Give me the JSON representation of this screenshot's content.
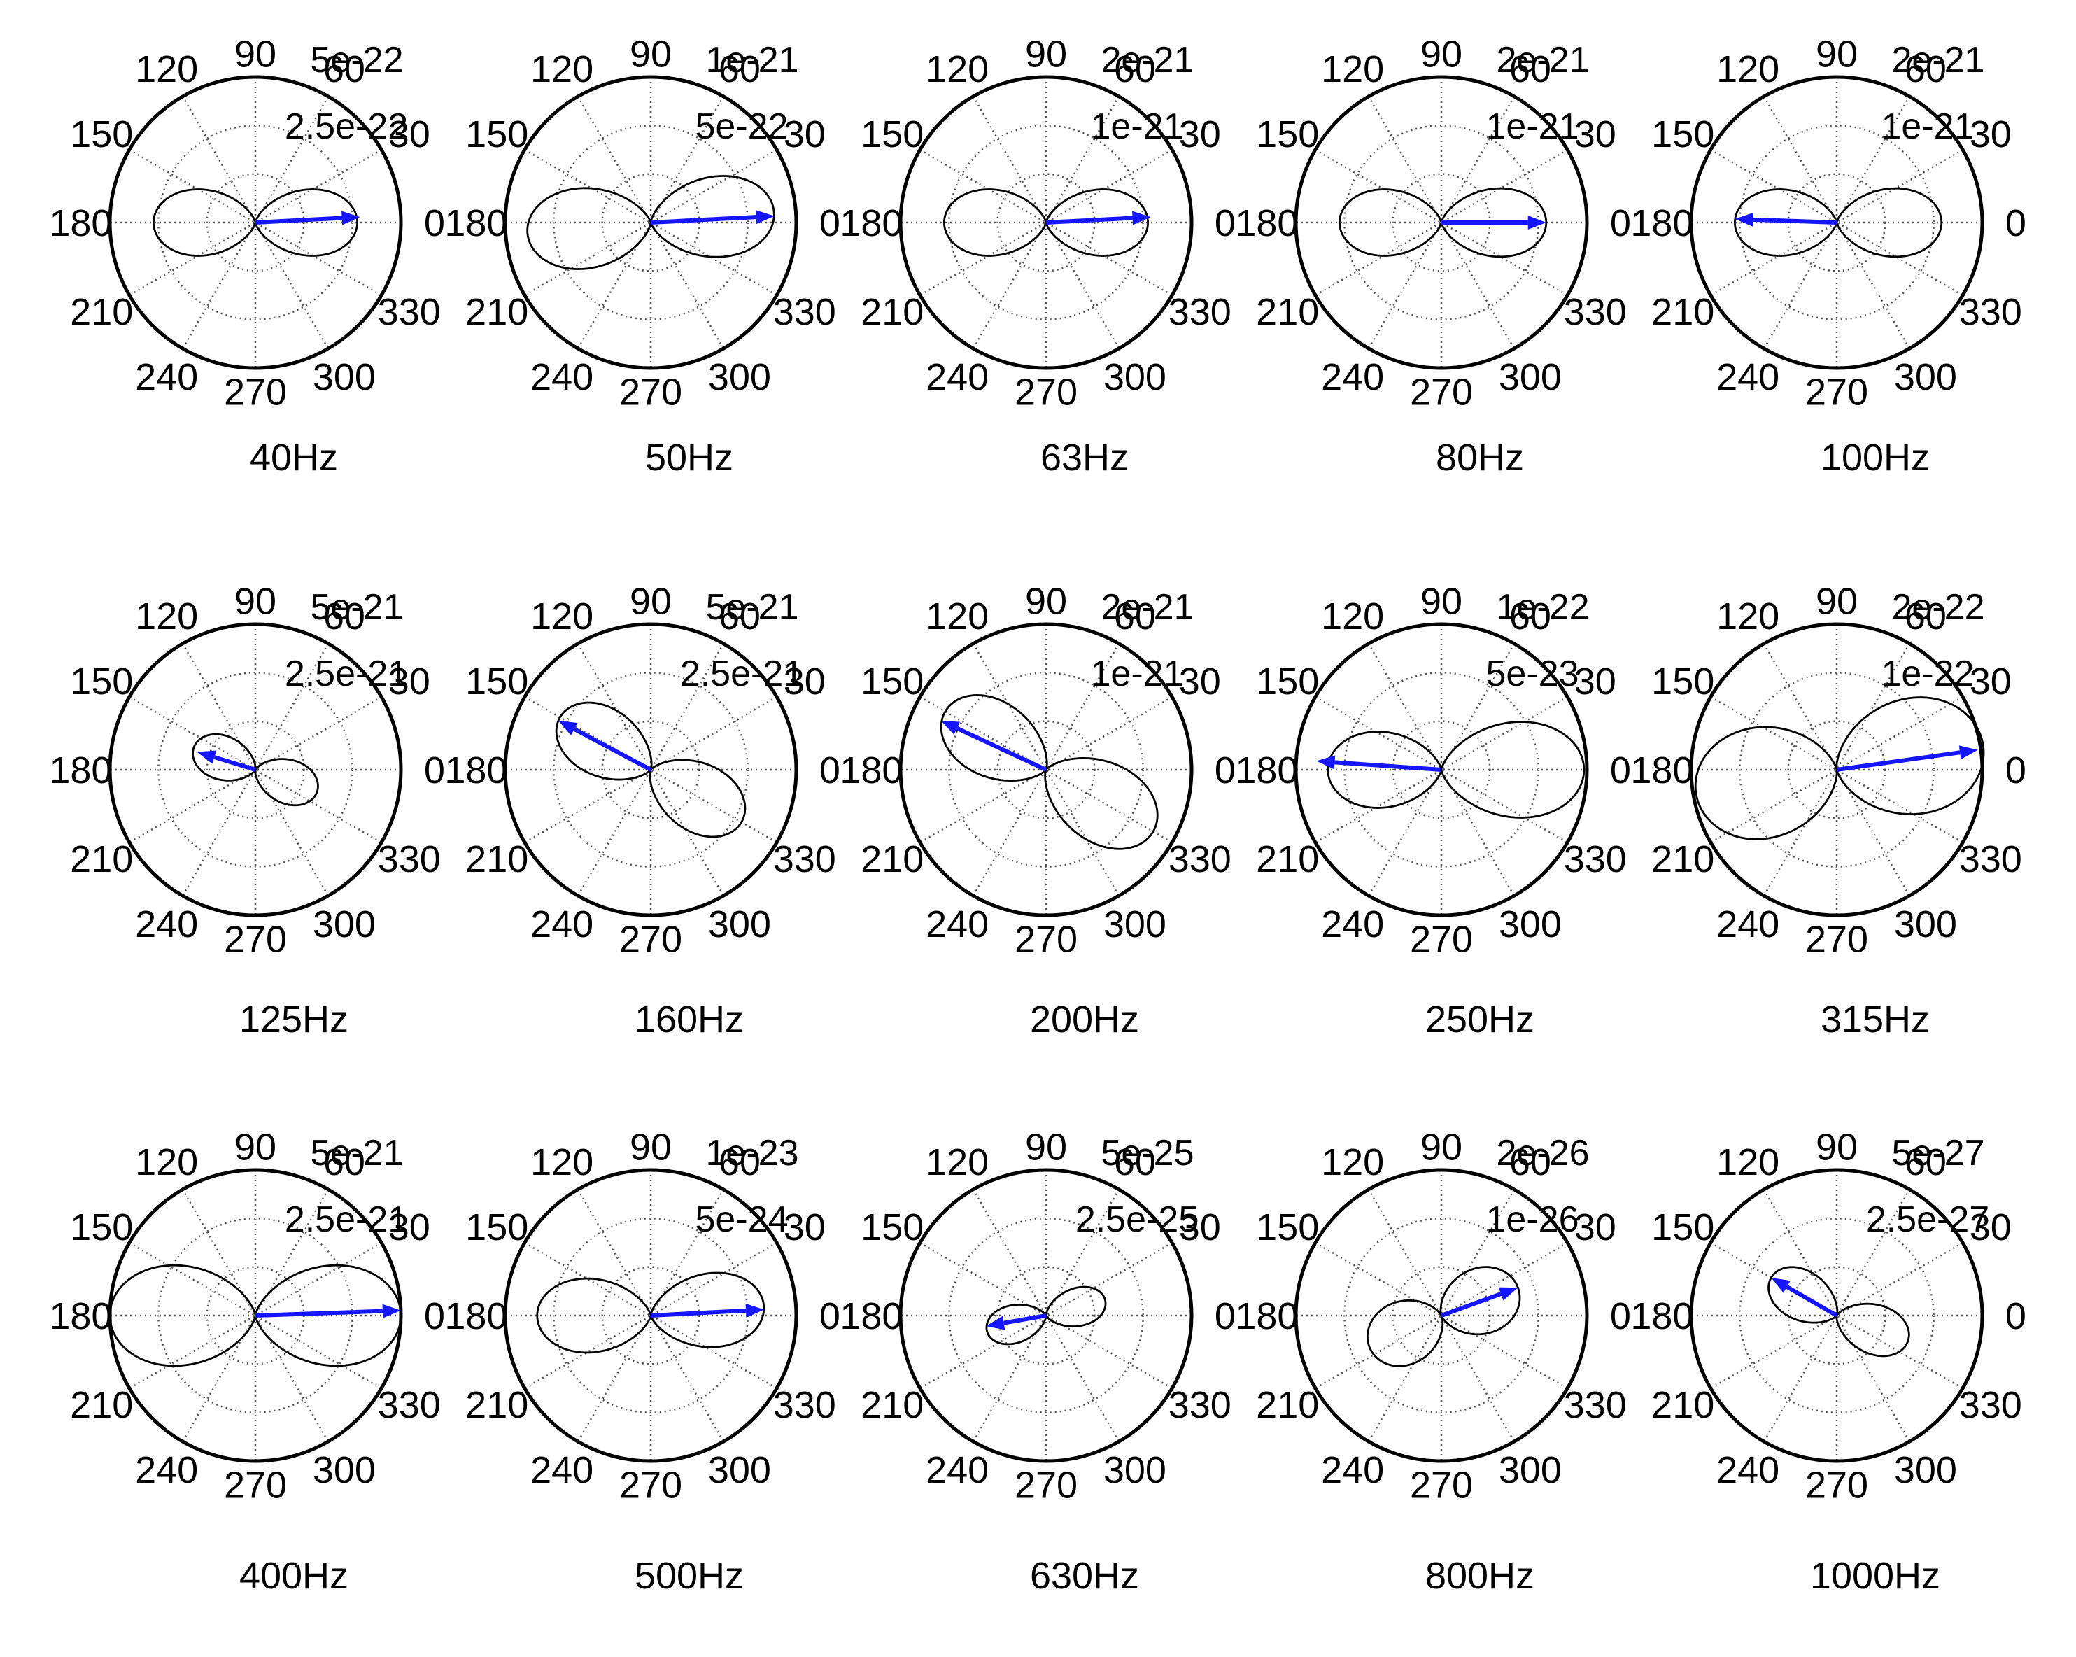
{
  "chart_data": {
    "type": "polar",
    "grid": true,
    "angle_ticks": [
      "0",
      "30",
      "60",
      "90",
      "120",
      "150",
      "180",
      "210",
      "240",
      "270",
      "300",
      "330"
    ],
    "colors": {
      "curve": "#000000",
      "grid": "#555555",
      "arrow": "#1515ff"
    },
    "plots": [
      {
        "title": "40Hz",
        "rmax_label": "5e-22",
        "rmid_label": "2.5e-22",
        "lobe_a": {
          "angle": 0,
          "r": 0.7
        },
        "lobe_b": {
          "angle": 180,
          "r": 0.7
        },
        "width": 0.58,
        "arrow": {
          "angle": 3,
          "r": 0.72
        }
      },
      {
        "title": "50Hz",
        "rmax_label": "1e-21",
        "rmid_label": "5e-22",
        "lobe_a": {
          "angle": 5,
          "r": 0.85
        },
        "lobe_b": {
          "angle": 185,
          "r": 0.85
        },
        "width": 0.58,
        "arrow": {
          "angle": 3,
          "r": 0.85
        }
      },
      {
        "title": "63Hz",
        "rmax_label": "2e-21",
        "rmid_label": "1e-21",
        "lobe_a": {
          "angle": 0,
          "r": 0.7
        },
        "lobe_b": {
          "angle": 180,
          "r": 0.7
        },
        "width": 0.58,
        "arrow": {
          "angle": 3,
          "r": 0.72
        }
      },
      {
        "title": "80Hz",
        "rmax_label": "2e-21",
        "rmid_label": "1e-21",
        "lobe_a": {
          "angle": 0,
          "r": 0.72
        },
        "lobe_b": {
          "angle": 180,
          "r": 0.7
        },
        "width": 0.58,
        "arrow": {
          "angle": 0,
          "r": 0.72
        }
      },
      {
        "title": "100Hz",
        "rmax_label": "2e-21",
        "rmid_label": "1e-21",
        "lobe_a": {
          "angle": 0,
          "r": 0.72
        },
        "lobe_b": {
          "angle": 180,
          "r": 0.7
        },
        "width": 0.58,
        "arrow": {
          "angle": 178,
          "r": 0.7
        }
      },
      {
        "title": "125Hz",
        "rmax_label": "5e-21",
        "rmid_label": "2.5e-21",
        "lobe_a": {
          "angle": 340,
          "r": 0.45
        },
        "lobe_b": {
          "angle": 160,
          "r": 0.45
        },
        "width": 0.6,
        "arrow": {
          "angle": 163,
          "r": 0.42
        }
      },
      {
        "title": "160Hz",
        "rmax_label": "5e-21",
        "rmid_label": "2.5e-21",
        "lobe_a": {
          "angle": 330,
          "r": 0.72
        },
        "lobe_b": {
          "angle": 150,
          "r": 0.72
        },
        "width": 0.58,
        "arrow": {
          "angle": 152,
          "r": 0.72
        }
      },
      {
        "title": "200Hz",
        "rmax_label": "2e-21",
        "rmid_label": "1e-21",
        "lobe_a": {
          "angle": 330,
          "r": 0.85
        },
        "lobe_b": {
          "angle": 150,
          "r": 0.8
        },
        "width": 0.58,
        "arrow": {
          "angle": 155,
          "r": 0.8
        }
      },
      {
        "title": "250Hz",
        "rmax_label": "1e-22",
        "rmid_label": "5e-23",
        "lobe_a": {
          "angle": 0,
          "r": 0.98
        },
        "lobe_b": {
          "angle": 180,
          "r": 0.78
        },
        "width": 0.6,
        "arrow": {
          "angle": 176,
          "r": 0.86
        }
      },
      {
        "title": "315Hz",
        "rmax_label": "2e-22",
        "rmid_label": "1e-22",
        "lobe_a": {
          "angle": 10,
          "r": 1.02
        },
        "lobe_b": {
          "angle": 190,
          "r": 0.98
        },
        "width": 0.72,
        "arrow": {
          "angle": 8,
          "r": 0.98
        }
      },
      {
        "title": "400Hz",
        "rmax_label": "5e-21",
        "rmid_label": "2.5e-21",
        "lobe_a": {
          "angle": 0,
          "r": 1.0
        },
        "lobe_b": {
          "angle": 180,
          "r": 1.0
        },
        "width": 0.62,
        "arrow": {
          "angle": 2,
          "r": 1.0
        }
      },
      {
        "title": "500Hz",
        "rmax_label": "1e-23",
        "rmid_label": "5e-24",
        "lobe_a": {
          "angle": 5,
          "r": 0.78
        },
        "lobe_b": {
          "angle": 180,
          "r": 0.78
        },
        "width": 0.58,
        "arrow": {
          "angle": 3,
          "r": 0.78
        }
      },
      {
        "title": "630Hz",
        "rmax_label": "5e-25",
        "rmid_label": "2.5e-25",
        "lobe_a": {
          "angle": 15,
          "r": 0.42
        },
        "lobe_b": {
          "angle": 195,
          "r": 0.42
        },
        "width": 0.55,
        "arrow": {
          "angle": 190,
          "r": 0.42
        }
      },
      {
        "title": "800Hz",
        "rmax_label": "2e-26",
        "rmid_label": "1e-26",
        "lobe_a": {
          "angle": 20,
          "r": 0.56
        },
        "lobe_b": {
          "angle": 205,
          "r": 0.54
        },
        "width": 0.75,
        "arrow": {
          "angle": 20,
          "r": 0.56
        }
      },
      {
        "title": "1000Hz",
        "rmax_label": "5e-27",
        "rmid_label": "2.5e-27",
        "lobe_a": {
          "angle": 340,
          "r": 0.52
        },
        "lobe_b": {
          "angle": 150,
          "r": 0.52
        },
        "width": 0.58,
        "arrow": {
          "angle": 150,
          "r": 0.52
        }
      }
    ]
  }
}
